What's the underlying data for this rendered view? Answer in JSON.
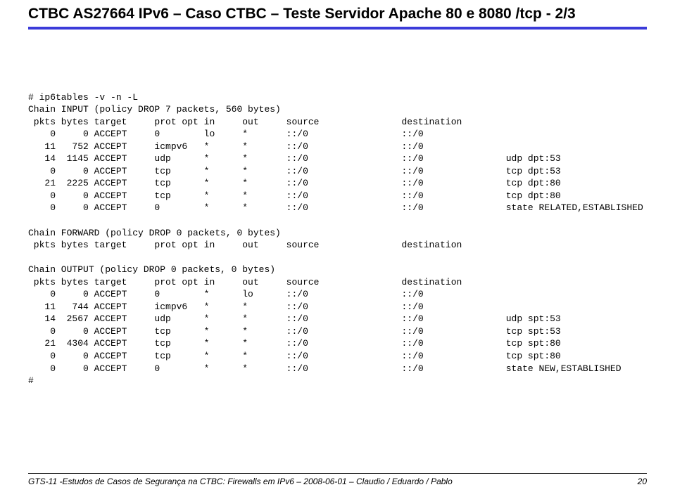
{
  "title": "CTBC AS27664 IPv6 – Caso CTBC – Teste Servidor Apache 80 e 8080 /tcp - 2/3",
  "footer_text": "GTS-11 -Estudos de Casos de Segurança na CTBC: Firewalls em IPv6 – 2008-06-01 – Claudio / Eduardo / Pablo",
  "page_number": "20",
  "cmd": "# ip6tables -v -n -L",
  "input_chain_header": "Chain INPUT (policy DROP 7 packets, 560 bytes)",
  "columns_header": " pkts bytes target     prot opt in     out     source               destination",
  "input_rows": [
    "    0     0 ACCEPT     0        lo     *       ::/0                 ::/0",
    "   11   752 ACCEPT     icmpv6   *      *       ::/0                 ::/0",
    "   14  1145 ACCEPT     udp      *      *       ::/0                 ::/0               udp dpt:53",
    "    0     0 ACCEPT     tcp      *      *       ::/0                 ::/0               tcp dpt:53",
    "   21  2225 ACCEPT     tcp      *      *       ::/0                 ::/0               tcp dpt:80",
    "    0     0 ACCEPT     tcp      *      *       ::/0                 ::/0               tcp dpt:80",
    "    0     0 ACCEPT     0        *      *       ::/0                 ::/0               state RELATED,ESTABLISHED"
  ],
  "forward_chain_header": "Chain FORWARD (policy DROP 0 packets, 0 bytes)",
  "forward_columns": " pkts bytes target     prot opt in     out     source               destination",
  "output_chain_header": "Chain OUTPUT (policy DROP 0 packets, 0 bytes)",
  "output_columns": " pkts bytes target     prot opt in     out     source               destination",
  "output_rows": [
    "    0     0 ACCEPT     0        *      lo      ::/0                 ::/0",
    "   11   744 ACCEPT     icmpv6   *      *       ::/0                 ::/0",
    "   14  2567 ACCEPT     udp      *      *       ::/0                 ::/0               udp spt:53",
    "    0     0 ACCEPT     tcp      *      *       ::/0                 ::/0               tcp spt:53",
    "   21  4304 ACCEPT     tcp      *      *       ::/0                 ::/0               tcp spt:80",
    "    0     0 ACCEPT     tcp      *      *       ::/0                 ::/0               tcp spt:80",
    "    0     0 ACCEPT     0        *      *       ::/0                 ::/0               state NEW,ESTABLISHED"
  ],
  "prompt_end": "#"
}
